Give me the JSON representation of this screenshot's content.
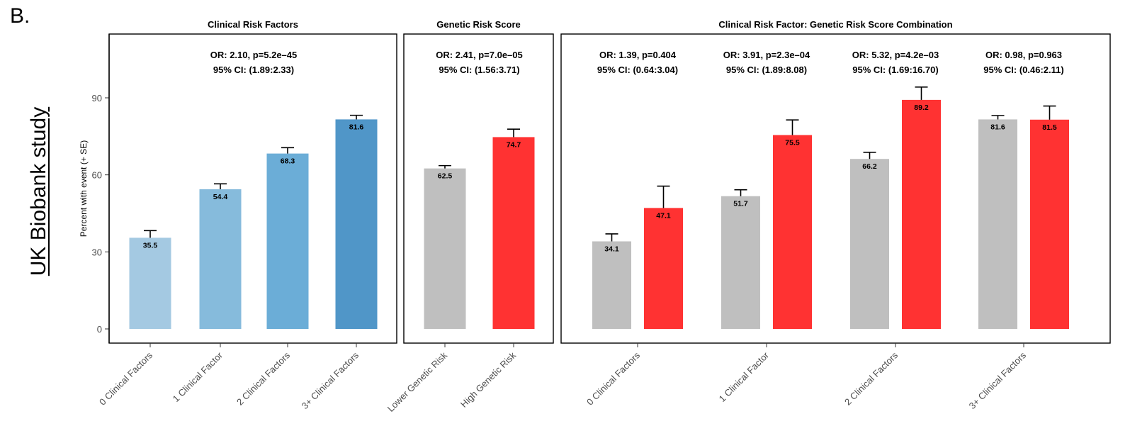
{
  "panel_label": "B.",
  "side_label": "UK Biobank study",
  "colors": {
    "blue_0": "#a4c9e2",
    "blue_1": "#86bbdc",
    "blue_2": "#6badd7",
    "blue_3": "#5096c8",
    "gray": "#bfbfbf",
    "red": "#ff3232"
  },
  "chart_data": [
    {
      "type": "bar",
      "title": "Clinical Risk Factors",
      "ylabel": "Percent with event (+ SE)",
      "ylim": [
        0,
        112
      ],
      "yticks": [
        0,
        30,
        60,
        90
      ],
      "categories": [
        "0 Clinical Factors",
        "1 Clinical Factor",
        "2 Clinical Factors",
        "3+ Clinical Factors"
      ],
      "series": [
        {
          "values": [
            35.5,
            54.4,
            68.3,
            81.6
          ],
          "errors": [
            2.8,
            2.1,
            2.3,
            1.6
          ],
          "value_labels": [
            "35.5",
            "54.4",
            "68.3",
            "81.6"
          ],
          "colors": [
            "#a4c9e2",
            "#86bbdc",
            "#6badd7",
            "#5096c8"
          ]
        }
      ],
      "annotations": [
        {
          "line1": "OR: 2.10, p=5.2e–45",
          "line2": "95% CI: (1.89:2.33)"
        }
      ]
    },
    {
      "type": "bar",
      "title": "Genetic Risk Score",
      "ylim": [
        0,
        112
      ],
      "categories": [
        "Lower Genetic Risk",
        "High Genetic Risk"
      ],
      "series": [
        {
          "values": [
            62.5,
            74.7
          ],
          "errors": [
            1.1,
            3.1
          ],
          "value_labels": [
            "62.5",
            "74.7"
          ],
          "colors": [
            "#bfbfbf",
            "#ff3232"
          ]
        }
      ],
      "annotations": [
        {
          "line1": "OR: 2.41, p=7.0e–05",
          "line2": "95% CI: (1.56:3.71)"
        }
      ]
    },
    {
      "type": "bar",
      "title": "Clinical Risk Factor: Genetic Risk Score Combination",
      "ylim": [
        0,
        112
      ],
      "categories": [
        "0 Clinical Factors",
        "1 Clinical Factor",
        "2 Clinical Factors",
        "3+ Clinical Factors"
      ],
      "series": [
        {
          "values": [
            34.1,
            51.7,
            66.2,
            81.6
          ],
          "errors": [
            2.9,
            2.5,
            2.6,
            1.5
          ],
          "value_labels": [
            "34.1",
            "51.7",
            "66.2",
            "81.6"
          ],
          "color": "#bfbfbf"
        },
        {
          "values": [
            47.1,
            75.5,
            89.2,
            81.5
          ],
          "errors": [
            8.5,
            5.9,
            5.0,
            5.3
          ],
          "value_labels": [
            "47.1",
            "75.5",
            "89.2",
            "81.5"
          ],
          "color": "#ff3232"
        }
      ],
      "annotations": [
        {
          "line1": "OR: 1.39, p=0.404",
          "line2": "95% CI: (0.64:3.04)"
        },
        {
          "line1": "OR: 3.91, p=2.3e–04",
          "line2": "95% CI: (1.89:8.08)"
        },
        {
          "line1": "OR: 5.32, p=4.2e–03",
          "line2": "95% CI: (1.69:16.70)"
        },
        {
          "line1": "OR: 0.98, p=0.963",
          "line2": "95% CI: (0.46:2.11)"
        }
      ]
    }
  ]
}
